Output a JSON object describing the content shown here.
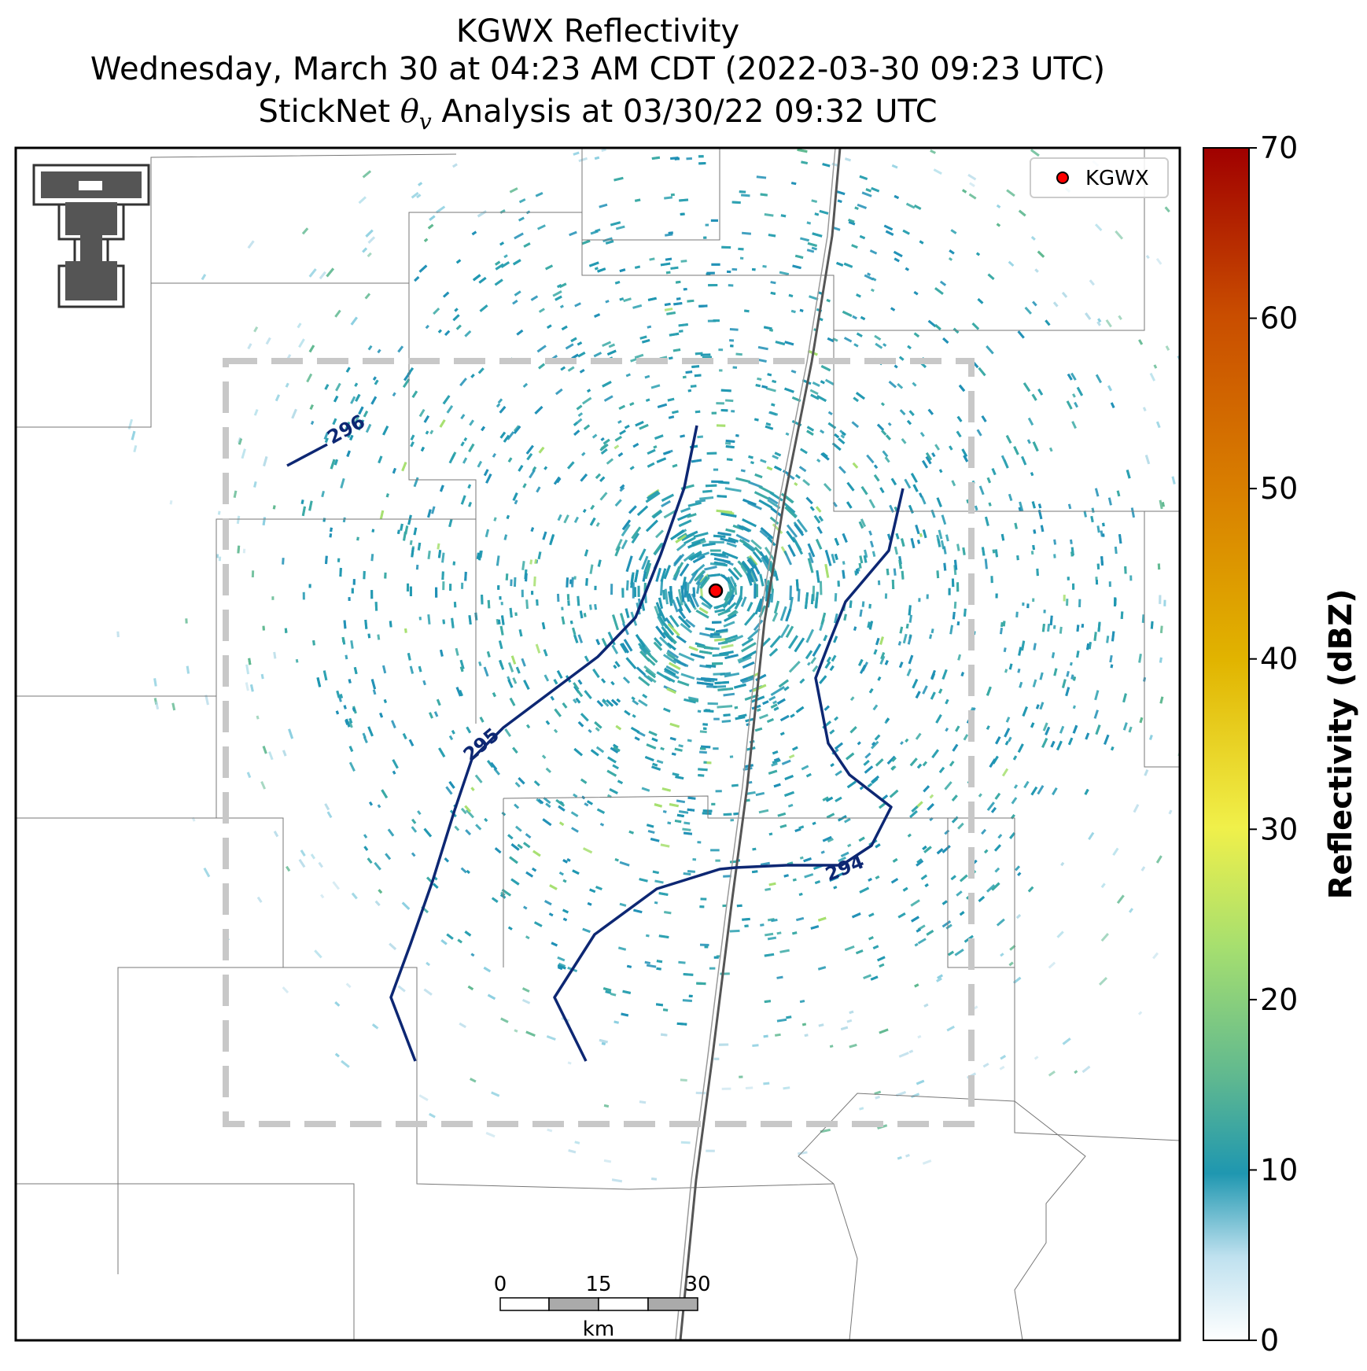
{
  "title": {
    "line1": "KGWX Reflectivity",
    "line2": "Wednesday, March 30 at 04:23 AM CDT (2022-03-30 09:23 UTC)",
    "line3_prefix": "StickNet ",
    "line3_symbol": "θ",
    "line3_subscript": "v",
    "line3_suffix": " Analysis at 03/30/22 09:32 UTC"
  },
  "legend": {
    "label": "KGWX",
    "marker_color": "#ff0000"
  },
  "colorbar": {
    "label": "Reflectivity (dBZ)",
    "ticks": [
      "0",
      "10",
      "20",
      "30",
      "40",
      "50",
      "60",
      "70"
    ],
    "colors": [
      "#ffffff",
      "#bfe1ef",
      "#1f97b0",
      "#5fb890",
      "#a6df6f",
      "#f0f04a",
      "#e1b400",
      "#d98000",
      "#c94d00",
      "#b00000",
      "#a00000"
    ]
  },
  "scale_bar": {
    "ticks": [
      "0",
      "15",
      "30"
    ],
    "unit": "km"
  },
  "contours": [
    {
      "label": "296",
      "value": 296
    },
    {
      "label": "295",
      "value": 295
    },
    {
      "label": "294",
      "value": 294
    }
  ],
  "radar_site": {
    "name": "KGWX"
  },
  "logo": {
    "name": "Texas Tech Double T"
  },
  "colors": {
    "contour": "#0d2773",
    "domain_box": "#c8c8c8",
    "echo_low": "#1f97b0"
  }
}
